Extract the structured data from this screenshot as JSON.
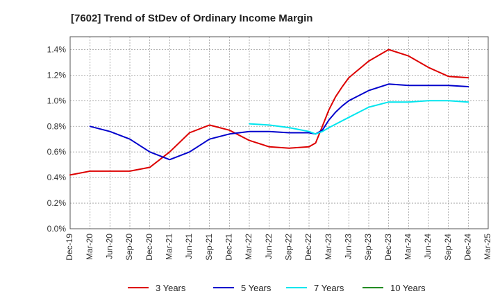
{
  "chart_data": {
    "type": "line",
    "title": "[7602]  Trend of StDev of Ordinary Income Margin",
    "xlabel": "",
    "ylabel": "",
    "x_ticks": [
      "Dec-19",
      "Mar-20",
      "Jun-20",
      "Sep-20",
      "Dec-20",
      "Mar-21",
      "Jun-21",
      "Sep-21",
      "Dec-21",
      "Mar-22",
      "Jun-22",
      "Sep-22",
      "Dec-22",
      "Mar-23",
      "Jun-23",
      "Sep-23",
      "Dec-23",
      "Mar-24",
      "Jun-24",
      "Sep-24",
      "Dec-24",
      "Mar-25"
    ],
    "y_ticks": [
      "0.0%",
      "0.2%",
      "0.4%",
      "0.6%",
      "0.8%",
      "1.0%",
      "1.2%",
      "1.4%"
    ],
    "ylim": [
      0,
      1.5
    ],
    "grid": true,
    "legend_position": "bottom",
    "series": [
      {
        "name": "3 Years",
        "color": "#dd0000",
        "values": [
          [
            0,
            0.42
          ],
          [
            1,
            0.45
          ],
          [
            2,
            0.45
          ],
          [
            3,
            0.45
          ],
          [
            4,
            0.48
          ],
          [
            5,
            0.6
          ],
          [
            6,
            0.75
          ],
          [
            7,
            0.81
          ],
          [
            8,
            0.77
          ],
          [
            9,
            0.69
          ],
          [
            10,
            0.64
          ],
          [
            11,
            0.63
          ],
          [
            12,
            0.64
          ],
          [
            12.33,
            0.67
          ],
          [
            12.67,
            0.8
          ],
          [
            13,
            0.93
          ],
          [
            13.33,
            1.03
          ],
          [
            13.67,
            1.11
          ],
          [
            14,
            1.18
          ],
          [
            15,
            1.31
          ],
          [
            16,
            1.4
          ],
          [
            17,
            1.35
          ],
          [
            18,
            1.26
          ],
          [
            19,
            1.19
          ],
          [
            20,
            1.18
          ]
        ]
      },
      {
        "name": "5 Years",
        "color": "#0000cc",
        "values": [
          [
            1,
            0.8
          ],
          [
            2,
            0.76
          ],
          [
            3,
            0.7
          ],
          [
            4,
            0.6
          ],
          [
            5,
            0.54
          ],
          [
            6,
            0.6
          ],
          [
            7,
            0.7
          ],
          [
            8,
            0.74
          ],
          [
            9,
            0.76
          ],
          [
            10,
            0.76
          ],
          [
            11,
            0.75
          ],
          [
            12,
            0.75
          ],
          [
            12.33,
            0.74
          ],
          [
            12.67,
            0.77
          ],
          [
            13,
            0.85
          ],
          [
            13.33,
            0.91
          ],
          [
            13.67,
            0.96
          ],
          [
            14,
            1.0
          ],
          [
            15,
            1.08
          ],
          [
            16,
            1.13
          ],
          [
            17,
            1.12
          ],
          [
            18,
            1.12
          ],
          [
            19,
            1.12
          ],
          [
            20,
            1.11
          ]
        ]
      },
      {
        "name": "7 Years",
        "color": "#00e5ee",
        "values": [
          [
            9,
            0.82
          ],
          [
            10,
            0.81
          ],
          [
            11,
            0.79
          ],
          [
            12,
            0.76
          ],
          [
            12.33,
            0.74
          ],
          [
            12.67,
            0.76
          ],
          [
            13,
            0.79
          ],
          [
            14,
            0.87
          ],
          [
            15,
            0.95
          ],
          [
            16,
            0.99
          ],
          [
            17,
            0.99
          ],
          [
            18,
            1.0
          ],
          [
            19,
            1.0
          ],
          [
            20,
            0.99
          ]
        ]
      },
      {
        "name": "10 Years",
        "color": "#228b22",
        "values": []
      }
    ]
  }
}
